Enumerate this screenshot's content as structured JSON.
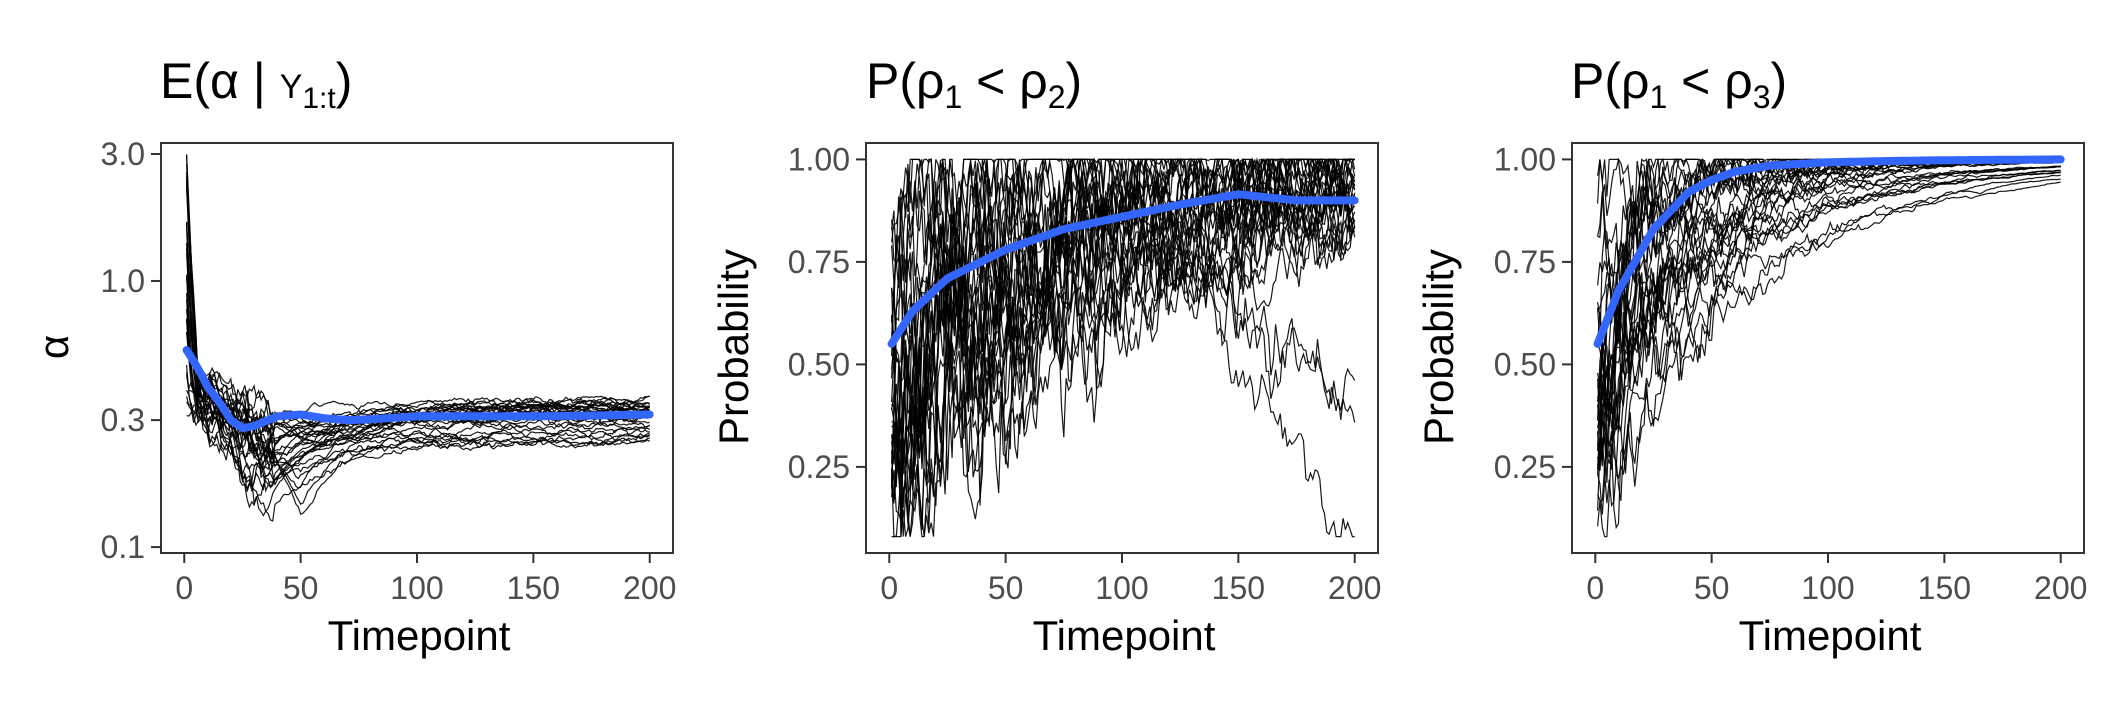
{
  "colors": {
    "smooth": "#3366ff",
    "trajectory": "#000000",
    "frame": "#333333",
    "tick_text": "#4d4d4d"
  },
  "chart_data": [
    {
      "type": "line",
      "title": {
        "main": "E(α | ",
        "sub": "Y",
        "subscript": "1:t",
        "close": ")"
      },
      "xlabel": "Timepoint",
      "ylabel": "α",
      "xlim": [
        -10,
        210
      ],
      "ylim": [
        0.095,
        3.3
      ],
      "yscale": "log",
      "xticks": [
        0,
        50,
        100,
        150,
        200
      ],
      "xtick_labels": [
        "0",
        "50",
        "100",
        "150",
        "200"
      ],
      "yticks": [
        0.1,
        0.3,
        1.0,
        3.0
      ],
      "ytick_labels": [
        "0.1",
        "0.3",
        "1.0",
        "3.0"
      ],
      "grid": false,
      "legend": "none",
      "trajectories": {
        "count": 30,
        "x_range": [
          1,
          200
        ],
        "start_range": [
          0.3,
          2.9
        ],
        "end_range": [
          0.24,
          0.36
        ]
      },
      "series": [
        {
          "x": [
            1,
            10,
            20,
            25,
            30,
            40,
            50,
            60,
            70,
            80,
            100,
            120,
            150,
            175,
            200
          ],
          "y": [
            0.55,
            0.4,
            0.3,
            0.28,
            0.285,
            0.31,
            0.315,
            0.305,
            0.3,
            0.302,
            0.31,
            0.31,
            0.31,
            0.312,
            0.315
          ]
        }
      ]
    },
    {
      "type": "line",
      "title": {
        "main": "P(ρ",
        "sub1": "1",
        "mid": " < ρ",
        "sub2": "2",
        "close": ")"
      },
      "xlabel": "Timepoint",
      "ylabel": "Probability",
      "xlim": [
        -10,
        210
      ],
      "ylim": [
        0.04,
        1.04
      ],
      "yscale": "linear",
      "xticks": [
        0,
        50,
        100,
        150,
        200
      ],
      "xtick_labels": [
        "0",
        "50",
        "100",
        "150",
        "200"
      ],
      "yticks": [
        0.25,
        0.5,
        0.75,
        1.0
      ],
      "ytick_labels": [
        "0.25",
        "0.50",
        "0.75",
        "1.00"
      ],
      "grid": false,
      "legend": "none",
      "trajectories": {
        "count": 30,
        "x_range": [
          1,
          200
        ],
        "end_values": [
          1.0,
          0.99,
          0.98,
          0.97,
          0.96,
          0.95,
          0.93,
          0.83,
          0.43,
          0.4,
          0.08
        ]
      },
      "series": [
        {
          "x": [
            1,
            10,
            25,
            50,
            75,
            100,
            125,
            150,
            175,
            200
          ],
          "y": [
            0.55,
            0.63,
            0.71,
            0.78,
            0.83,
            0.86,
            0.89,
            0.915,
            0.9,
            0.9
          ]
        }
      ]
    },
    {
      "type": "line",
      "title": {
        "main": "P(ρ",
        "sub1": "1",
        "mid": " < ρ",
        "sub2": "3",
        "close": ")"
      },
      "xlabel": "Timepoint",
      "ylabel": "Probability",
      "xlim": [
        -10,
        210
      ],
      "ylim": [
        0.04,
        1.04
      ],
      "yscale": "linear",
      "xticks": [
        0,
        50,
        100,
        150,
        200
      ],
      "xtick_labels": [
        "0",
        "50",
        "100",
        "150",
        "200"
      ],
      "yticks": [
        0.25,
        0.5,
        0.75,
        1.0
      ],
      "ytick_labels": [
        "0.25",
        "0.50",
        "0.75",
        "1.00"
      ],
      "grid": false,
      "legend": "none",
      "trajectories": {
        "count": 30,
        "x_range": [
          1,
          200
        ],
        "end_values": [
          1.0
        ]
      },
      "series": [
        {
          "x": [
            1,
            10,
            25,
            40,
            50,
            60,
            75,
            100,
            125,
            150,
            200
          ],
          "y": [
            0.55,
            0.68,
            0.83,
            0.92,
            0.95,
            0.97,
            0.985,
            0.993,
            0.996,
            0.998,
            1.0
          ]
        }
      ]
    }
  ]
}
